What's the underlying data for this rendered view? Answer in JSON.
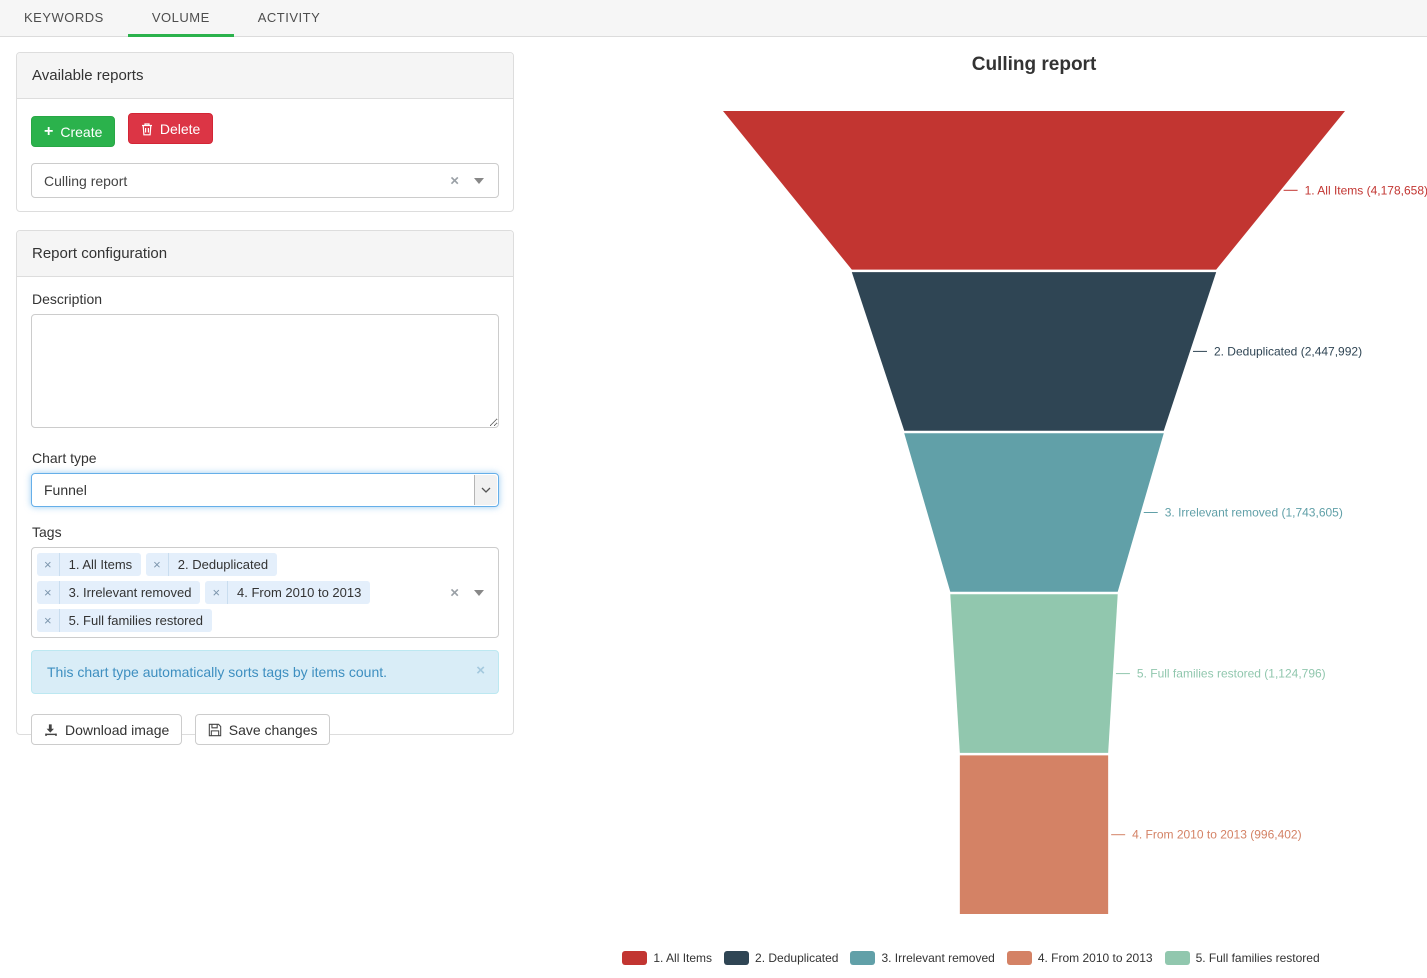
{
  "tabs": [
    {
      "label": "KEYWORDS",
      "active": false
    },
    {
      "label": "VOLUME",
      "active": true
    },
    {
      "label": "ACTIVITY",
      "active": false
    }
  ],
  "available_reports": {
    "title": "Available reports",
    "create_label": "Create",
    "delete_label": "Delete",
    "selected_report": "Culling report"
  },
  "report_configuration": {
    "title": "Report configuration",
    "description_label": "Description",
    "description_value": "",
    "chart_type_label": "Chart type",
    "chart_type_value": "Funnel",
    "tags_label": "Tags",
    "selected_tags": [
      "1. All Items",
      "2. Deduplicated",
      "3. Irrelevant removed",
      "4. From 2010 to 2013",
      "5. Full families restored"
    ],
    "alert_text": "This chart type automatically sorts tags by items count.",
    "download_image_label": "Download image",
    "save_changes_label": "Save changes"
  },
  "chart_data": {
    "type": "funnel",
    "title": "Culling report",
    "sort": "descending",
    "label_position": "right",
    "legend_position": "bottom",
    "items": [
      {
        "label": "1. All Items",
        "value": 4178658,
        "color": "#c23531"
      },
      {
        "label": "2. Deduplicated",
        "value": 2447992,
        "color": "#2f4554"
      },
      {
        "label": "3. Irrelevant removed",
        "value": 1743605,
        "color": "#61a0a8"
      },
      {
        "label": "4. From 2010 to 2013",
        "value": 996402,
        "color": "#d48265"
      },
      {
        "label": "5. Full families restored",
        "value": 1124796,
        "color": "#91c7ae"
      }
    ]
  },
  "theme": {
    "accent_green": "#2bb24c",
    "danger_red": "#dc3545",
    "info_bg": "#d9edf7",
    "info_border": "#bce8f1",
    "info_text": "#3e8fc0",
    "tag_bg": "#e4effb",
    "tag_divider": "#c9ddef",
    "select_focus": "#66afe9"
  }
}
